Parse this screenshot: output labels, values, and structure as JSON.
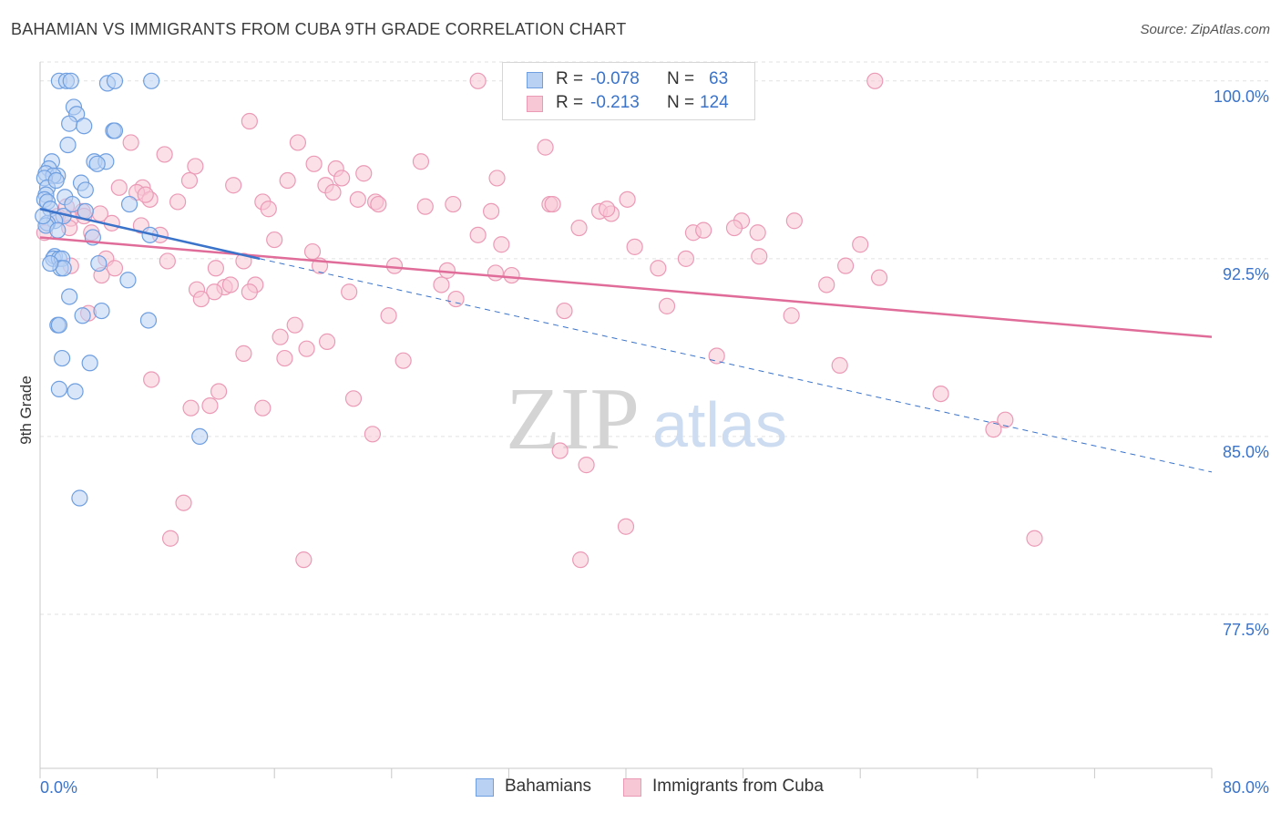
{
  "header": {
    "title": "BAHAMIAN VS IMMIGRANTS FROM CUBA 9TH GRADE CORRELATION CHART",
    "source": "Source: ZipAtlas.com"
  },
  "watermark": {
    "zip": "ZIP",
    "atlas": "atlas"
  },
  "colors": {
    "blue": "#3a73c9",
    "blue_fill": "#b9d2f4",
    "blue_stroke": "#6f9fe0",
    "pink": "#e06c99",
    "pink_fill": "#f8c7d6",
    "pink_stroke": "#eb9ab6",
    "grid": "#e2e2e2",
    "axis_text": "#3a73c9"
  },
  "legend": {
    "rows": [
      {
        "r_label": "R =",
        "r_value": "-0.078",
        "n_label": "N =",
        "n_value": "63"
      },
      {
        "r_label": "R =",
        "r_value": "-0.213",
        "n_label": "N =",
        "n_value": "124"
      }
    ]
  },
  "bottom_legend": {
    "items": [
      "Bahamians",
      "Immigrants from Cuba"
    ]
  },
  "chart_data": {
    "type": "scatter",
    "title": "BAHAMIAN VS IMMIGRANTS FROM CUBA 9TH GRADE CORRELATION CHART",
    "xlabel": "",
    "ylabel": "9th Grade",
    "xlim": [
      0,
      80
    ],
    "ylim": [
      71,
      100.8
    ],
    "x_tick_labels": [
      "0.0%",
      "80.0%"
    ],
    "y_ticks": [
      77.5,
      85.0,
      92.5,
      100.0
    ],
    "y_tick_labels": [
      "77.5%",
      "85.0%",
      "92.5%",
      "100.0%"
    ],
    "grid": true,
    "legend_position": "top-center",
    "series": [
      {
        "name": "Bahamians",
        "r": -0.078,
        "n": 63,
        "trend": {
          "x": [
            0,
            15
          ],
          "y": [
            94.6,
            92.5
          ]
        },
        "trend_dashed": {
          "x": [
            15,
            80
          ],
          "y": [
            92.5,
            83.5
          ]
        },
        "points": [
          [
            1.3,
            100
          ],
          [
            1.8,
            100
          ],
          [
            2.1,
            100
          ],
          [
            4.6,
            99.9
          ],
          [
            5.1,
            100
          ],
          [
            7.6,
            100
          ],
          [
            2.3,
            98.9
          ],
          [
            2.5,
            98.6
          ],
          [
            2.0,
            98.2
          ],
          [
            3.0,
            98.1
          ],
          [
            5.0,
            97.9
          ],
          [
            5.1,
            97.9
          ],
          [
            1.9,
            97.3
          ],
          [
            0.8,
            96.6
          ],
          [
            3.7,
            96.6
          ],
          [
            4.5,
            96.6
          ],
          [
            3.9,
            96.5
          ],
          [
            0.6,
            96.3
          ],
          [
            0.4,
            96.1
          ],
          [
            1.2,
            96.0
          ],
          [
            0.9,
            96.0
          ],
          [
            0.3,
            95.9
          ],
          [
            2.8,
            95.7
          ],
          [
            0.5,
            95.5
          ],
          [
            3.1,
            95.4
          ],
          [
            0.4,
            95.2
          ],
          [
            1.7,
            95.1
          ],
          [
            0.3,
            95.0
          ],
          [
            0.5,
            94.9
          ],
          [
            6.1,
            94.8
          ],
          [
            0.7,
            94.6
          ],
          [
            3.1,
            94.5
          ],
          [
            1.6,
            94.3
          ],
          [
            1.0,
            94.1
          ],
          [
            0.5,
            94.0
          ],
          [
            0.4,
            93.9
          ],
          [
            1.2,
            93.7
          ],
          [
            7.5,
            93.5
          ],
          [
            1.0,
            92.6
          ],
          [
            0.9,
            92.5
          ],
          [
            1.3,
            92.5
          ],
          [
            1.5,
            92.5
          ],
          [
            4.0,
            92.3
          ],
          [
            1.4,
            92.1
          ],
          [
            1.6,
            92.1
          ],
          [
            6.0,
            91.6
          ],
          [
            2.0,
            90.9
          ],
          [
            4.2,
            90.3
          ],
          [
            2.9,
            90.1
          ],
          [
            1.2,
            89.7
          ],
          [
            1.3,
            89.7
          ],
          [
            7.4,
            89.9
          ],
          [
            1.5,
            88.3
          ],
          [
            3.4,
            88.1
          ],
          [
            1.3,
            87.0
          ],
          [
            2.4,
            86.9
          ],
          [
            10.9,
            85.0
          ],
          [
            2.7,
            82.4
          ],
          [
            0.7,
            92.3
          ],
          [
            2.2,
            94.8
          ],
          [
            3.6,
            93.4
          ],
          [
            0.2,
            94.3
          ],
          [
            1.1,
            95.8
          ]
        ]
      },
      {
        "name": "Immigrants from Cuba",
        "r": -0.213,
        "n": 124,
        "trend": {
          "x": [
            0,
            80
          ],
          "y": [
            93.4,
            89.2
          ]
        },
        "points": [
          [
            29.9,
            100
          ],
          [
            57.0,
            100
          ],
          [
            14.3,
            98.3
          ],
          [
            6.2,
            97.4
          ],
          [
            17.6,
            97.4
          ],
          [
            8.5,
            96.9
          ],
          [
            34.5,
            97.2
          ],
          [
            26.0,
            96.6
          ],
          [
            18.7,
            96.5
          ],
          [
            20.2,
            96.3
          ],
          [
            10.6,
            96.4
          ],
          [
            22.1,
            96.1
          ],
          [
            20.6,
            95.9
          ],
          [
            7.0,
            95.5
          ],
          [
            13.2,
            95.6
          ],
          [
            10.2,
            95.8
          ],
          [
            16.9,
            95.8
          ],
          [
            31.2,
            95.9
          ],
          [
            19.5,
            95.6
          ],
          [
            5.4,
            95.5
          ],
          [
            20.0,
            95.3
          ],
          [
            6.6,
            95.3
          ],
          [
            7.5,
            95.0
          ],
          [
            21.7,
            95.0
          ],
          [
            7.2,
            95.2
          ],
          [
            22.9,
            94.9
          ],
          [
            15.2,
            94.9
          ],
          [
            23.1,
            94.8
          ],
          [
            28.2,
            94.8
          ],
          [
            34.8,
            94.8
          ],
          [
            35.0,
            94.8
          ],
          [
            9.4,
            94.9
          ],
          [
            15.6,
            94.6
          ],
          [
            30.8,
            94.5
          ],
          [
            38.2,
            94.5
          ],
          [
            39.0,
            94.4
          ],
          [
            40.1,
            95.0
          ],
          [
            2.9,
            94.5
          ],
          [
            4.1,
            94.4
          ],
          [
            1.2,
            94.3
          ],
          [
            2.1,
            94.2
          ],
          [
            4.9,
            94.0
          ],
          [
            47.9,
            94.1
          ],
          [
            51.5,
            94.1
          ],
          [
            44.6,
            93.6
          ],
          [
            45.3,
            93.7
          ],
          [
            47.4,
            93.8
          ],
          [
            49.0,
            93.6
          ],
          [
            2.0,
            93.8
          ],
          [
            3.5,
            93.6
          ],
          [
            8.2,
            93.5
          ],
          [
            16.0,
            93.3
          ],
          [
            29.9,
            93.5
          ],
          [
            31.5,
            93.1
          ],
          [
            36.8,
            93.8
          ],
          [
            40.6,
            93.0
          ],
          [
            56.0,
            93.1
          ],
          [
            18.6,
            92.8
          ],
          [
            8.7,
            92.4
          ],
          [
            13.9,
            92.4
          ],
          [
            4.5,
            92.5
          ],
          [
            19.1,
            92.2
          ],
          [
            24.2,
            92.2
          ],
          [
            44.1,
            92.5
          ],
          [
            49.1,
            92.6
          ],
          [
            55.0,
            92.2
          ],
          [
            2.1,
            92.2
          ],
          [
            5.1,
            92.1
          ],
          [
            27.8,
            92.0
          ],
          [
            31.1,
            91.9
          ],
          [
            32.2,
            91.8
          ],
          [
            42.2,
            92.1
          ],
          [
            57.3,
            91.7
          ],
          [
            4.2,
            91.8
          ],
          [
            14.7,
            91.4
          ],
          [
            12.6,
            91.3
          ],
          [
            13.0,
            91.4
          ],
          [
            10.7,
            91.2
          ],
          [
            11.9,
            91.1
          ],
          [
            21.1,
            91.1
          ],
          [
            27.4,
            91.4
          ],
          [
            53.7,
            91.4
          ],
          [
            14.3,
            91.1
          ],
          [
            11.0,
            90.8
          ],
          [
            28.4,
            90.8
          ],
          [
            42.8,
            90.5
          ],
          [
            35.8,
            90.3
          ],
          [
            3.3,
            90.2
          ],
          [
            23.8,
            90.1
          ],
          [
            51.3,
            90.1
          ],
          [
            17.4,
            89.7
          ],
          [
            16.4,
            89.2
          ],
          [
            19.6,
            89.0
          ],
          [
            13.9,
            88.5
          ],
          [
            16.7,
            88.3
          ],
          [
            18.2,
            88.7
          ],
          [
            24.8,
            88.2
          ],
          [
            46.2,
            88.4
          ],
          [
            54.6,
            88.0
          ],
          [
            7.6,
            87.4
          ],
          [
            12.2,
            86.9
          ],
          [
            21.4,
            86.6
          ],
          [
            61.5,
            86.8
          ],
          [
            10.3,
            86.2
          ],
          [
            11.6,
            86.3
          ],
          [
            15.2,
            86.2
          ],
          [
            22.7,
            85.1
          ],
          [
            65.9,
            85.7
          ],
          [
            65.1,
            85.3
          ],
          [
            35.5,
            84.4
          ],
          [
            37.3,
            83.8
          ],
          [
            9.8,
            82.2
          ],
          [
            40.0,
            81.2
          ],
          [
            8.9,
            80.7
          ],
          [
            67.9,
            80.7
          ],
          [
            18.0,
            79.8
          ],
          [
            36.9,
            79.8
          ],
          [
            0.3,
            93.6
          ],
          [
            1.8,
            94.7
          ],
          [
            26.3,
            94.7
          ],
          [
            38.7,
            94.6
          ],
          [
            12.0,
            92.1
          ],
          [
            3.0,
            94.3
          ],
          [
            6.9,
            93.9
          ]
        ]
      }
    ]
  }
}
